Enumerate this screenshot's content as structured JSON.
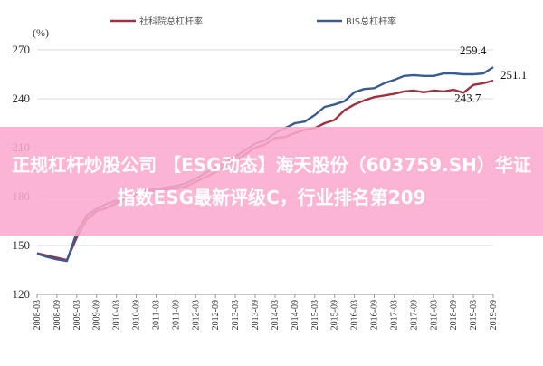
{
  "banner": {
    "text": "正规杠杆炒股公司 【ESG动态】海天股份（603759.SH）华证指数ESG最新评级C，行业排名第209"
  },
  "chart_data": {
    "type": "line",
    "ylabel": "(%)",
    "ylim": [
      120,
      270
    ],
    "yticks": [
      120,
      150,
      180,
      210,
      240,
      270
    ],
    "x": [
      "2008-03",
      "2008-06",
      "2008-09",
      "2008-12",
      "2009-03",
      "2009-06",
      "2009-09",
      "2009-12",
      "2010-03",
      "2010-06",
      "2010-09",
      "2010-12",
      "2011-03",
      "2011-06",
      "2011-09",
      "2011-12",
      "2012-03",
      "2012-06",
      "2012-09",
      "2012-12",
      "2013-03",
      "2013-06",
      "2013-09",
      "2013-12",
      "2014-03",
      "2014-06",
      "2014-09",
      "2014-12",
      "2015-03",
      "2015-06",
      "2015-09",
      "2015-12",
      "2016-03",
      "2016-06",
      "2016-09",
      "2016-12",
      "2017-03",
      "2017-06",
      "2017-09",
      "2017-12",
      "2018-03",
      "2018-06",
      "2018-09",
      "2018-12",
      "2019-03",
      "2019-06",
      "2019-09"
    ],
    "xticks": [
      "2008-03",
      "2008-09",
      "2009-03",
      "2009-09",
      "2010-03",
      "2010-09",
      "2011-03",
      "2011-09",
      "2012-03",
      "2012-09",
      "2013-03",
      "2013-09",
      "2014-03",
      "2014-09",
      "2015-03",
      "2015-09",
      "2016-03",
      "2016-09",
      "2017-03",
      "2017-09",
      "2018-03",
      "2018-09",
      "2019-03",
      "2019-09"
    ],
    "legend_position": "top",
    "series": [
      {
        "name": "社科院总杠杆率",
        "color": "#a0303f",
        "values": [
          145.2,
          143.8,
          142.5,
          141.0,
          155.0,
          166.0,
          171.0,
          173.0,
          176.0,
          179.0,
          181.0,
          183.0,
          183.5,
          184.5,
          185.0,
          186.0,
          189.0,
          192.0,
          195.0,
          199.0,
          202.0,
          206.0,
          210.0,
          212.0,
          216.0,
          216.5,
          219.0,
          221.0,
          222.0,
          225.0,
          227.0,
          233.0,
          236.5,
          239.0,
          241.0,
          242.0,
          243.0,
          244.5,
          245.0,
          244.0,
          245.0,
          244.5,
          245.5,
          243.7,
          248.5,
          249.5,
          251.1
        ]
      },
      {
        "name": "BIS总杠杆率",
        "color": "#3a5a93",
        "values": [
          145.0,
          143.0,
          141.5,
          140.5,
          158.0,
          168.5,
          172.5,
          175.5,
          177.5,
          180.0,
          182.0,
          184.0,
          184.5,
          185.5,
          186.5,
          188.0,
          191.0,
          194.5,
          198.0,
          201.0,
          204.5,
          208.5,
          212.5,
          214.5,
          219.0,
          222.0,
          225.0,
          226.0,
          230.0,
          235.0,
          236.5,
          238.5,
          244.0,
          246.0,
          246.5,
          249.5,
          251.5,
          254.0,
          254.5,
          254.0,
          254.0,
          255.5,
          255.5,
          255.0,
          255.0,
          255.5,
          259.4
        ]
      }
    ],
    "annotations": [
      {
        "text": "259.4",
        "x": "2019-06",
        "y": 259.4
      },
      {
        "text": "251.1",
        "x": "2019-09",
        "y": 251.1
      },
      {
        "text": "243.7",
        "x": "2018-12",
        "y": 243.7
      }
    ]
  }
}
